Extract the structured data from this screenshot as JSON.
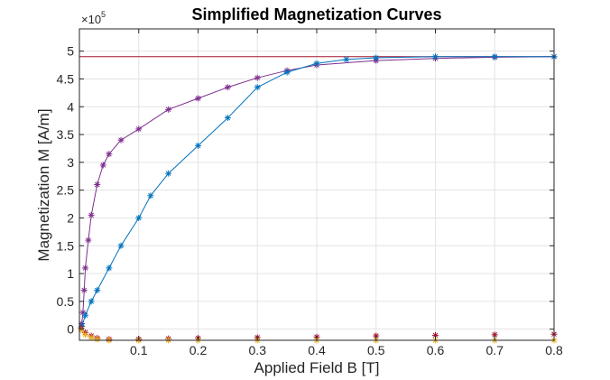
{
  "chart_data": {
    "type": "scatter",
    "title": "Simplified Magnetization Curves",
    "xlabel": "Applied Field B [T]",
    "ylabel": "Magnetization M [A/m]",
    "y_exponent_base": "×10",
    "y_exponent_power": "5",
    "xlim": [
      0,
      0.8
    ],
    "ylim": [
      -0.2,
      5.4
    ],
    "x_ticks": [
      0.1,
      0.2,
      0.3,
      0.4,
      0.5,
      0.6,
      0.7,
      0.8
    ],
    "x_tick_labels": [
      "0.1",
      "0.2",
      "0.3",
      "0.4",
      "0.5",
      "0.6",
      "0.7",
      "0.8"
    ],
    "y_ticks": [
      0,
      0.5,
      1,
      1.5,
      2,
      2.5,
      3,
      3.5,
      4,
      4.5,
      5
    ],
    "y_tick_labels": [
      "0",
      "0.5",
      "1",
      "1.5",
      "2",
      "2.5",
      "3",
      "3.5",
      "4",
      "4.5",
      "5"
    ],
    "grid": true,
    "saturation_line": {
      "y": 4.9,
      "color": "#a2142f"
    },
    "series": [
      {
        "color": "#7e2f8e",
        "marker": "*",
        "line": true,
        "x": [
          0.004,
          0.006,
          0.008,
          0.01,
          0.015,
          0.02,
          0.03,
          0.04,
          0.05,
          0.07,
          0.1,
          0.15,
          0.2,
          0.25,
          0.3,
          0.35,
          0.4,
          0.5,
          0.6,
          0.7,
          0.8
        ],
        "y": [
          0.1,
          0.3,
          0.7,
          1.1,
          1.6,
          2.05,
          2.6,
          2.95,
          3.15,
          3.4,
          3.6,
          3.95,
          4.15,
          4.35,
          4.52,
          4.65,
          4.75,
          4.83,
          4.87,
          4.89,
          4.9
        ]
      },
      {
        "color": "#0072bd",
        "marker": "*",
        "line": true,
        "x": [
          0.004,
          0.01,
          0.02,
          0.03,
          0.05,
          0.07,
          0.1,
          0.12,
          0.15,
          0.2,
          0.25,
          0.3,
          0.35,
          0.4,
          0.45,
          0.5,
          0.6,
          0.7,
          0.8
        ],
        "y": [
          0.05,
          0.25,
          0.5,
          0.7,
          1.1,
          1.5,
          2.0,
          2.4,
          2.8,
          3.3,
          3.8,
          4.35,
          4.62,
          4.78,
          4.85,
          4.88,
          4.9,
          4.9,
          4.9
        ]
      },
      {
        "color": "#a2142f",
        "marker": "*",
        "line": false,
        "x": [
          0.003,
          0.01,
          0.02,
          0.03,
          0.05,
          0.1,
          0.15,
          0.2,
          0.3,
          0.4,
          0.5,
          0.6,
          0.7,
          0.8
        ],
        "y": [
          0.02,
          -0.06,
          -0.12,
          -0.16,
          -0.18,
          -0.18,
          -0.17,
          -0.16,
          -0.15,
          -0.14,
          -0.12,
          -0.11,
          -0.1,
          -0.09
        ]
      },
      {
        "color": "#edb120",
        "marker": "*",
        "line": false,
        "x": [
          0.003,
          0.01,
          0.02,
          0.03,
          0.05,
          0.1,
          0.15,
          0.2,
          0.3,
          0.4,
          0.5,
          0.6,
          0.7,
          0.8
        ],
        "y": [
          -0.02,
          -0.1,
          -0.15,
          -0.18,
          -0.2,
          -0.2,
          -0.2,
          -0.2,
          -0.2,
          -0.2,
          -0.2,
          -0.2,
          -0.2,
          -0.2
        ]
      }
    ]
  }
}
